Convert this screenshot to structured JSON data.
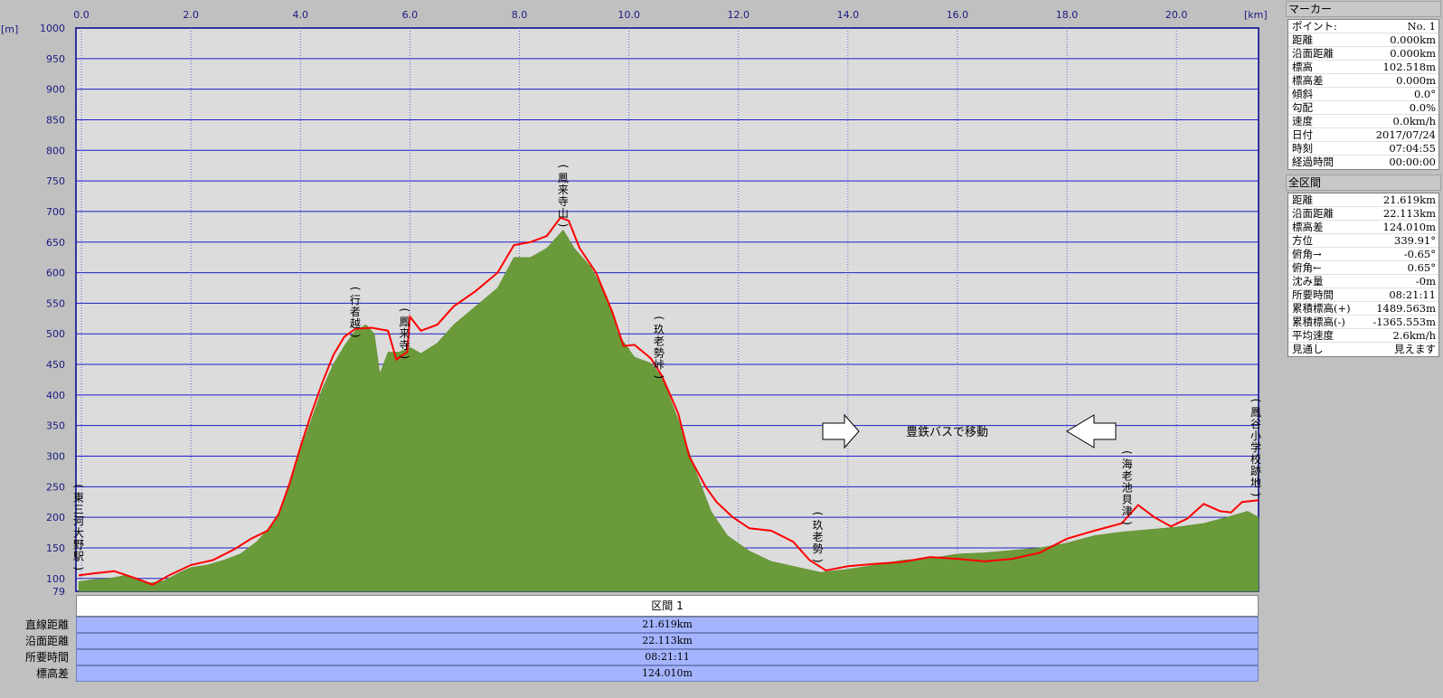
{
  "chart_data": {
    "type": "area",
    "x_unit": "[km]",
    "y_unit": "[m]",
    "xlim": [
      -0.1,
      21.5
    ],
    "ylim": [
      79,
      1000
    ],
    "x_ticks": [
      "0.0",
      "2.0",
      "4.0",
      "6.0",
      "8.0",
      "10.0",
      "12.0",
      "14.0",
      "16.0",
      "18.0",
      "20.0"
    ],
    "x_tick_values": [
      0,
      2,
      4,
      6,
      8,
      10,
      12,
      14,
      16,
      18,
      20
    ],
    "y_ticks": [
      "1000",
      "950",
      "900",
      "850",
      "800",
      "750",
      "700",
      "650",
      "600",
      "550",
      "500",
      "450",
      "400",
      "350",
      "300",
      "250",
      "200",
      "150",
      "100",
      "79"
    ],
    "y_tick_values": [
      1000,
      950,
      900,
      850,
      800,
      750,
      700,
      650,
      600,
      550,
      500,
      450,
      400,
      350,
      300,
      250,
      200,
      150,
      100,
      79
    ],
    "series": [
      {
        "kind": "area",
        "color": "#6b9a3a",
        "points": [
          [
            -0.05,
            95
          ],
          [
            0.2,
            98
          ],
          [
            0.5,
            100
          ],
          [
            0.8,
            105
          ],
          [
            1.0,
            98
          ],
          [
            1.2,
            92
          ],
          [
            1.5,
            96
          ],
          [
            1.8,
            110
          ],
          [
            2.0,
            118
          ],
          [
            2.3,
            122
          ],
          [
            2.6,
            130
          ],
          [
            2.9,
            140
          ],
          [
            3.2,
            160
          ],
          [
            3.4,
            180
          ],
          [
            3.6,
            205
          ],
          [
            3.8,
            255
          ],
          [
            4.0,
            310
          ],
          [
            4.2,
            360
          ],
          [
            4.4,
            410
          ],
          [
            4.6,
            450
          ],
          [
            4.8,
            480
          ],
          [
            5.0,
            505
          ],
          [
            5.2,
            515
          ],
          [
            5.35,
            500
          ],
          [
            5.45,
            435
          ],
          [
            5.6,
            470
          ],
          [
            5.8,
            470
          ],
          [
            6.0,
            478
          ],
          [
            6.2,
            468
          ],
          [
            6.5,
            485
          ],
          [
            6.8,
            515
          ],
          [
            7.2,
            545
          ],
          [
            7.6,
            575
          ],
          [
            7.9,
            625
          ],
          [
            8.2,
            625
          ],
          [
            8.5,
            640
          ],
          [
            8.8,
            670
          ],
          [
            9.0,
            640
          ],
          [
            9.3,
            610
          ],
          [
            9.6,
            560
          ],
          [
            9.8,
            500
          ],
          [
            10.1,
            462
          ],
          [
            10.4,
            452
          ],
          [
            10.6,
            430
          ],
          [
            10.9,
            360
          ],
          [
            11.2,
            280
          ],
          [
            11.5,
            210
          ],
          [
            11.8,
            170
          ],
          [
            12.2,
            145
          ],
          [
            12.6,
            128
          ],
          [
            13.0,
            120
          ],
          [
            13.5,
            110
          ],
          [
            14.0,
            115
          ],
          [
            14.5,
            122
          ],
          [
            15.0,
            130
          ],
          [
            15.5,
            133
          ],
          [
            16.0,
            140
          ],
          [
            16.5,
            142
          ],
          [
            17.0,
            146
          ],
          [
            17.5,
            150
          ],
          [
            18.0,
            158
          ],
          [
            18.5,
            170
          ],
          [
            19.0,
            176
          ],
          [
            19.5,
            180
          ],
          [
            20.0,
            184
          ],
          [
            20.5,
            190
          ],
          [
            21.0,
            202
          ],
          [
            21.3,
            210
          ],
          [
            21.5,
            200
          ]
        ]
      },
      {
        "kind": "line",
        "color": "#ff0000",
        "points": [
          [
            -0.05,
            105
          ],
          [
            0.2,
            108
          ],
          [
            0.6,
            112
          ],
          [
            1.0,
            100
          ],
          [
            1.3,
            90
          ],
          [
            1.6,
            105
          ],
          [
            2.0,
            122
          ],
          [
            2.4,
            130
          ],
          [
            2.8,
            148
          ],
          [
            3.1,
            165
          ],
          [
            3.4,
            178
          ],
          [
            3.6,
            205
          ],
          [
            3.8,
            255
          ],
          [
            4.0,
            315
          ],
          [
            4.2,
            370
          ],
          [
            4.4,
            420
          ],
          [
            4.6,
            465
          ],
          [
            4.8,
            495
          ],
          [
            5.0,
            508
          ],
          [
            5.3,
            510
          ],
          [
            5.6,
            505
          ],
          [
            5.75,
            458
          ],
          [
            5.95,
            470
          ],
          [
            6.0,
            528
          ],
          [
            6.2,
            505
          ],
          [
            6.5,
            515
          ],
          [
            6.8,
            545
          ],
          [
            7.2,
            570
          ],
          [
            7.6,
            600
          ],
          [
            7.9,
            645
          ],
          [
            8.2,
            650
          ],
          [
            8.5,
            660
          ],
          [
            8.75,
            690
          ],
          [
            8.9,
            685
          ],
          [
            9.1,
            640
          ],
          [
            9.4,
            600
          ],
          [
            9.7,
            535
          ],
          [
            9.9,
            480
          ],
          [
            10.1,
            482
          ],
          [
            10.4,
            460
          ],
          [
            10.6,
            432
          ],
          [
            10.9,
            370
          ],
          [
            11.1,
            300
          ],
          [
            11.4,
            250
          ],
          [
            11.6,
            225
          ],
          [
            11.9,
            200
          ],
          [
            12.2,
            182
          ],
          [
            12.6,
            178
          ],
          [
            13.0,
            160
          ],
          [
            13.3,
            130
          ],
          [
            13.6,
            113
          ],
          [
            14.0,
            120
          ],
          [
            14.5,
            124
          ],
          [
            15.0,
            127
          ],
          [
            15.5,
            135
          ],
          [
            16.0,
            132
          ],
          [
            16.5,
            128
          ],
          [
            17.0,
            132
          ],
          [
            17.5,
            142
          ],
          [
            18.0,
            165
          ],
          [
            18.5,
            178
          ],
          [
            19.0,
            190
          ],
          [
            19.3,
            220
          ],
          [
            19.6,
            200
          ],
          [
            19.9,
            185
          ],
          [
            20.2,
            198
          ],
          [
            20.5,
            222
          ],
          [
            20.8,
            210
          ],
          [
            21.0,
            208
          ],
          [
            21.2,
            225
          ],
          [
            21.5,
            228
          ]
        ]
      }
    ],
    "annotations": [
      {
        "text": "(東三河大野駅)",
        "x": -0.05,
        "y_top": 245
      },
      {
        "text": "(行者越)",
        "x": 5.0,
        "y_top": 568
      },
      {
        "text": "(鳳来寺)",
        "x": 5.9,
        "y_top": 533
      },
      {
        "text": "(鳳来寺山)",
        "x": 8.8,
        "y_top": 768
      },
      {
        "text": "(玖老勢峠)",
        "x": 10.55,
        "y_top": 520
      },
      {
        "text": "(玖老勢)",
        "x": 13.45,
        "y_top": 200
      },
      {
        "text": "(海老池貝津)",
        "x": 19.1,
        "y_top": 300
      },
      {
        "text": "(鳳谷小学校跡地)",
        "x": 21.45,
        "y_top": 385
      }
    ],
    "note_text": "豊鉄バスで移動"
  },
  "segment": {
    "header": "区間 1",
    "rows": [
      {
        "label": "直線距離",
        "value": "21.619km"
      },
      {
        "label": "沿面距離",
        "value": "22.113km"
      },
      {
        "label": "所要時間",
        "value": "08:21:11"
      },
      {
        "label": "標高差",
        "value": "124.010m"
      }
    ]
  },
  "marker_panel": {
    "title": "マーカー",
    "rows": [
      {
        "k": "ポイント:",
        "v": "No. 1"
      },
      {
        "k": "距離",
        "v": "0.000km"
      },
      {
        "k": "沿面距離",
        "v": "0.000km"
      },
      {
        "k": "標高",
        "v": "102.518m"
      },
      {
        "k": "標高差",
        "v": "0.000m"
      },
      {
        "k": "傾斜",
        "v": "0.0°"
      },
      {
        "k": "勾配",
        "v": "0.0%"
      },
      {
        "k": "速度",
        "v": "0.0km/h"
      },
      {
        "k": "日付",
        "v": "2017/07/24"
      },
      {
        "k": "時刻",
        "v": "07:04:55"
      },
      {
        "k": "経過時間",
        "v": "00:00:00"
      }
    ]
  },
  "total_panel": {
    "title": "全区間",
    "rows": [
      {
        "k": "距離",
        "v": "21.619km"
      },
      {
        "k": "沿面距離",
        "v": "22.113km"
      },
      {
        "k": "標高差",
        "v": "124.010m"
      },
      {
        "k": "方位",
        "v": "339.91°"
      },
      {
        "k": "俯角→",
        "v": "-0.65°"
      },
      {
        "k": "俯角←",
        "v": "0.65°"
      },
      {
        "k": "沈み量",
        "v": "-0m"
      },
      {
        "k": "所要時間",
        "v": "08:21:11"
      },
      {
        "k": "累積標高(+)",
        "v": "1489.563m"
      },
      {
        "k": "累積標高(-)",
        "v": "-1365.553m"
      },
      {
        "k": "平均速度",
        "v": "2.6km/h"
      },
      {
        "k": "見通し",
        "v": "見えます"
      }
    ]
  }
}
